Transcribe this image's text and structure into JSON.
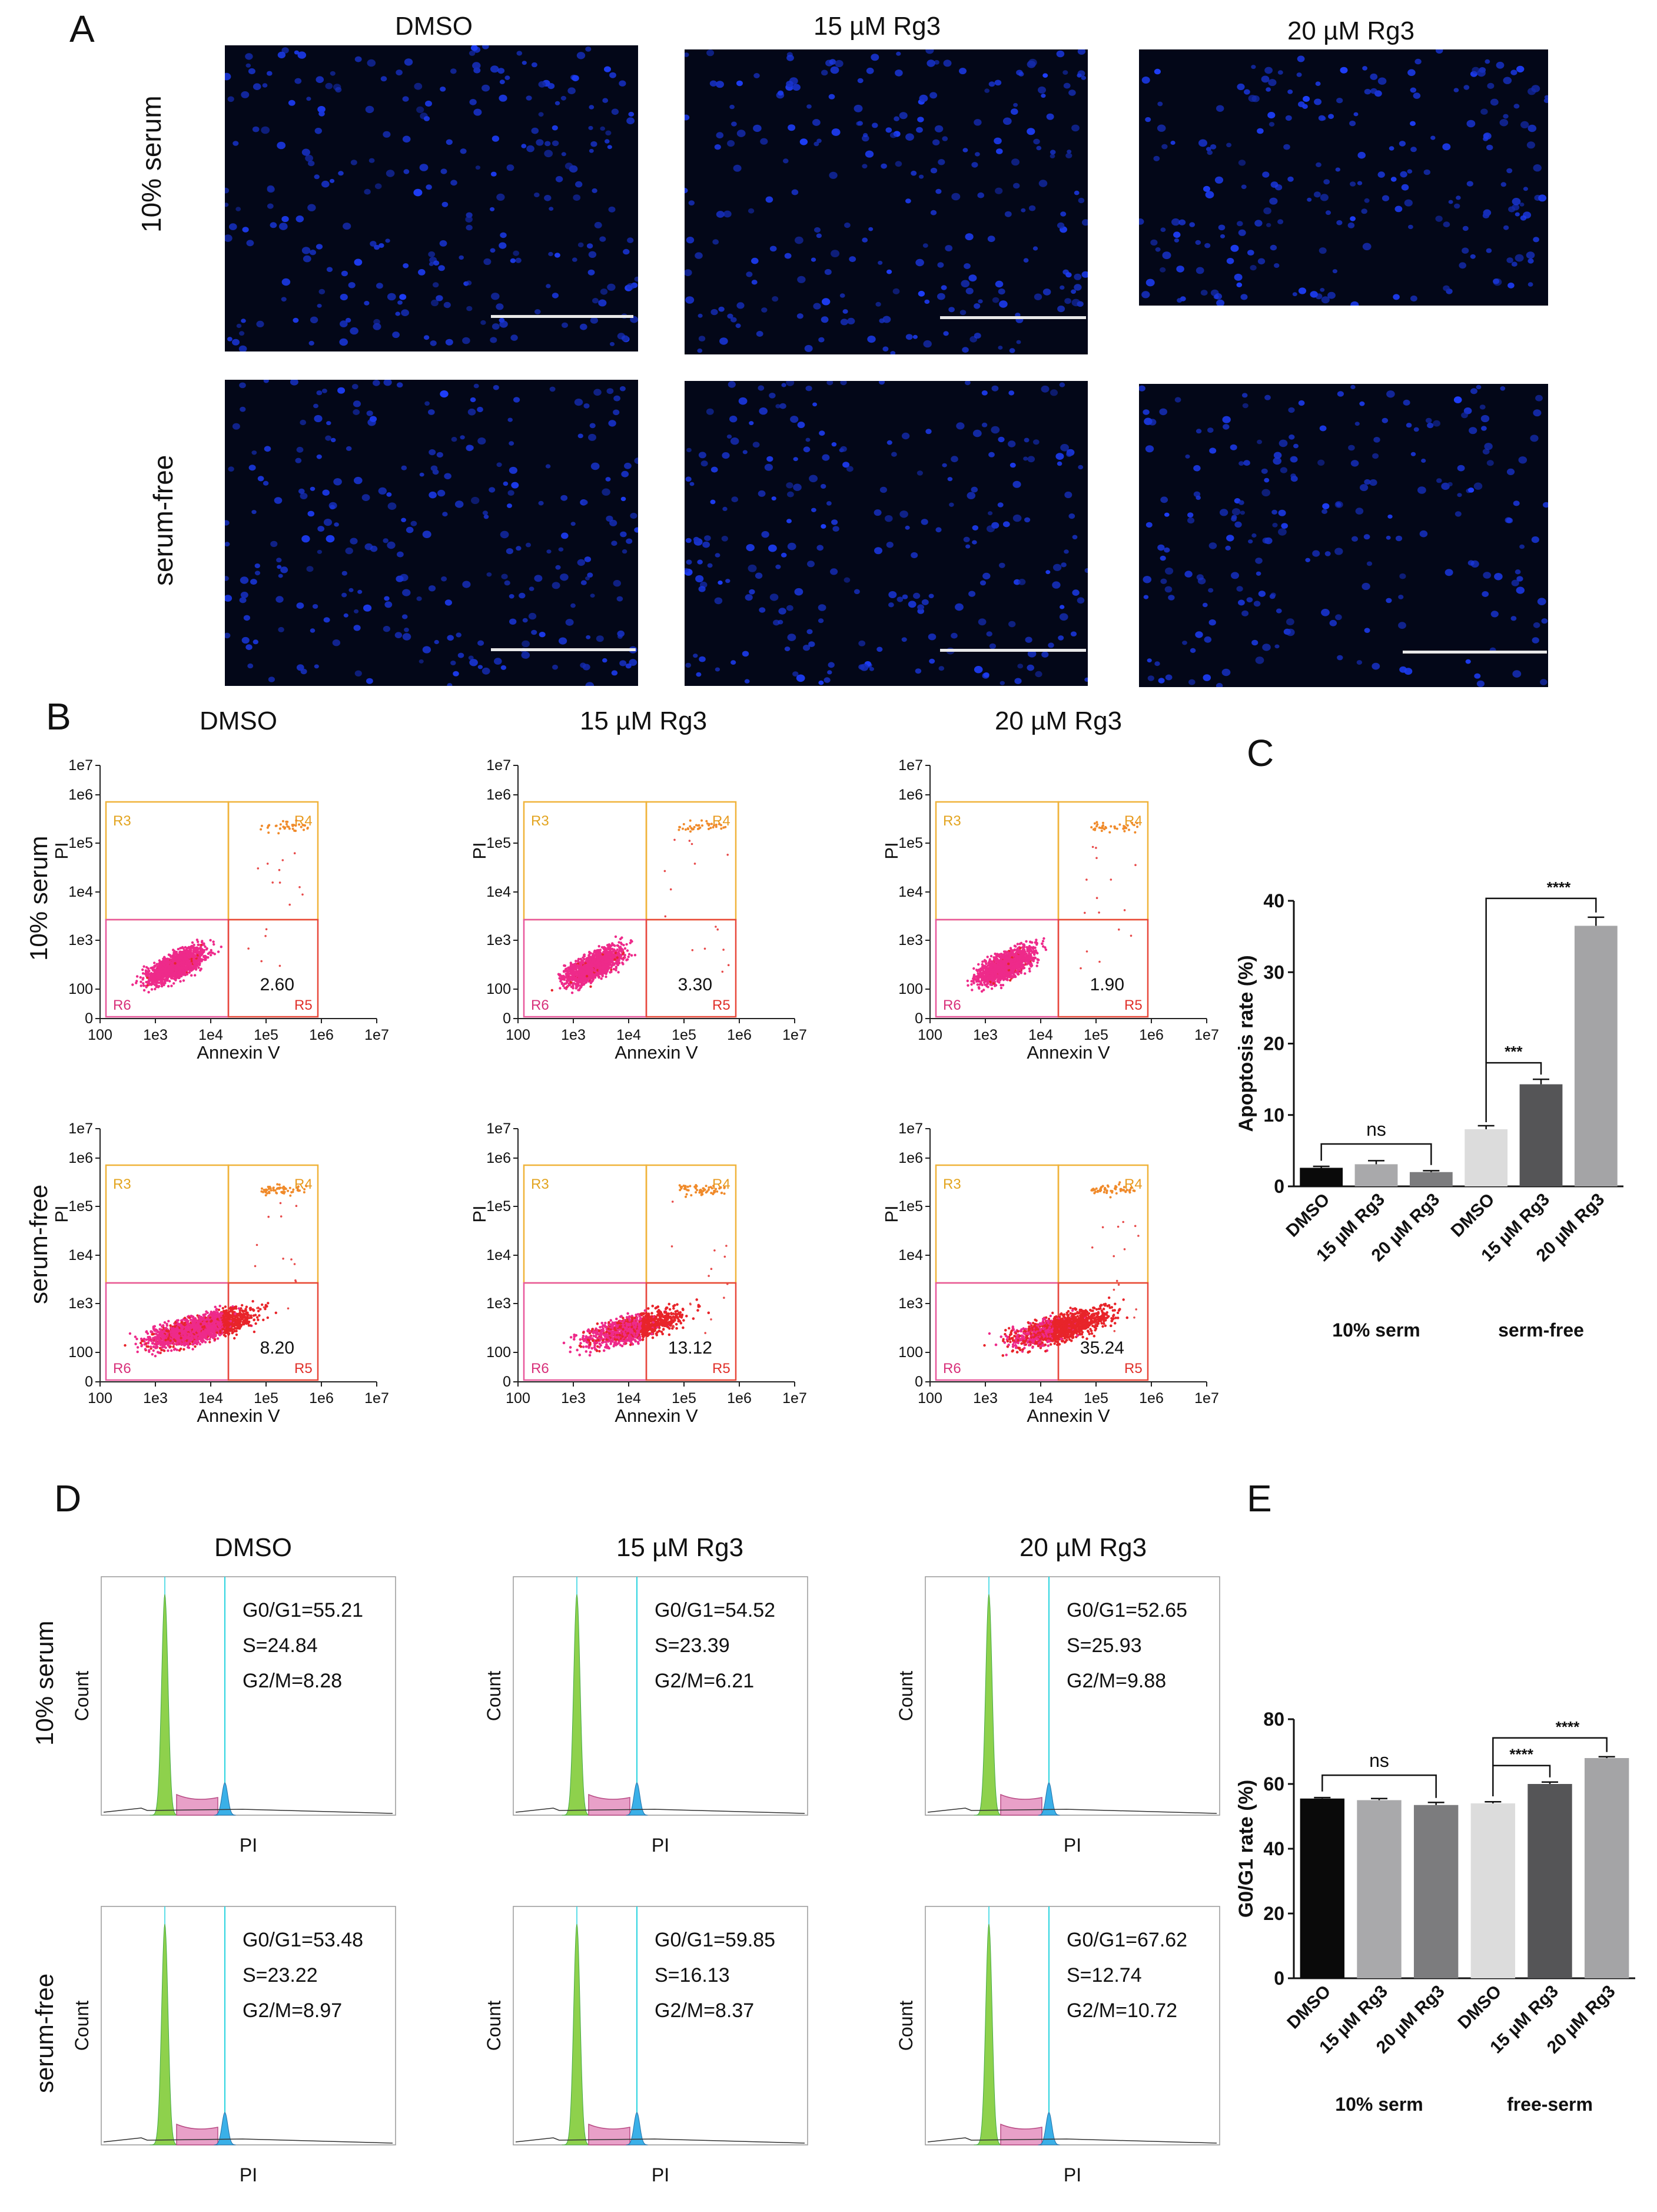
{
  "panels": {
    "A": "A",
    "B": "B",
    "C": "C",
    "D": "D",
    "E": "E"
  },
  "panelA": {
    "columns": [
      "DMSO",
      "15 µM Rg3",
      "20 µM Rg3"
    ],
    "rows": [
      "10% serum",
      "serum-free"
    ]
  },
  "panelB": {
    "columns": [
      "DMSO",
      "15 µM Rg3",
      "20  µM Rg3"
    ],
    "rows": [
      "10% serum",
      "serum-free"
    ],
    "x_ticks": [
      "100",
      "1e3",
      "1e4",
      "1e5",
      "1e6",
      "1e7"
    ],
    "y_ticks": [
      "0",
      "100",
      "1e3",
      "1e4",
      "1e5",
      "1e6",
      "1e7"
    ],
    "x_label": "Annexin V",
    "y_label": "PI",
    "gate_labels": [
      "R3",
      "R4",
      "R5",
      "R6"
    ],
    "values": [
      [
        "2.60",
        "3.30",
        "1.90"
      ],
      [
        "8.20",
        "13.12",
        "35.24"
      ]
    ],
    "red_fraction": [
      [
        0.02,
        0.03,
        0.02
      ],
      [
        0.18,
        0.3,
        0.55
      ]
    ]
  },
  "panelD": {
    "columns": [
      "DMSO",
      "15 µM Rg3",
      "20 µM Rg3"
    ],
    "rows": [
      "10% serum",
      "serum-free"
    ],
    "x_label": "PI",
    "y_label": "Count",
    "stats": [
      [
        [
          "G0/G1=55.21",
          "S=24.84",
          "G2/M=8.28"
        ],
        [
          "G0/G1=54.52",
          "S=23.39",
          "G2/M=6.21"
        ],
        [
          "G0/G1=52.65",
          "S=25.93",
          "G2/M=9.88"
        ]
      ],
      [
        [
          "G0/G1=53.48",
          "S=23.22",
          "G2/M=8.97"
        ],
        [
          "G0/G1=59.85",
          "S=16.13",
          "G2/M=8.37"
        ],
        [
          "G0/G1=67.62",
          "S=12.74",
          "G2/M=10.72"
        ]
      ]
    ]
  },
  "chart_data": [
    {
      "id": "C",
      "type": "bar",
      "categories": [
        "DMSO",
        "15 µM Rg3",
        "20 µM Rg3",
        "DMSO",
        "15 µM Rg3",
        "20 µM Rg3"
      ],
      "values": [
        2.6,
        3.1,
        2.0,
        8.0,
        14.3,
        36.5
      ],
      "errors": [
        0.2,
        0.5,
        0.2,
        0.5,
        0.7,
        1.2
      ],
      "colors": [
        "#0a0a0a",
        "#a9a9ab",
        "#7c7c7e",
        "#dcdcdc",
        "#555557",
        "#a4a4a6"
      ],
      "ylabel": "Apoptosis rate (%)",
      "ylim": [
        0,
        40
      ],
      "yticks": [
        "0",
        "10",
        "20",
        "30",
        "40"
      ],
      "groups": [
        "10% serm",
        "serm-free"
      ],
      "annotations": [
        "ns",
        "***",
        "****"
      ]
    },
    {
      "id": "E",
      "type": "bar",
      "categories": [
        "DMSO",
        "15 µM Rg3",
        "20 µM Rg3",
        "DMSO",
        "15 µM Rg3",
        "20 µM Rg3"
      ],
      "values": [
        55.5,
        55.0,
        53.5,
        54.0,
        60.0,
        68.0
      ],
      "errors": [
        0.3,
        0.5,
        0.8,
        0.5,
        0.6,
        0.4
      ],
      "colors": [
        "#0a0a0a",
        "#a9a9ab",
        "#7c7c7e",
        "#dcdcdc",
        "#555557",
        "#a4a4a6"
      ],
      "ylabel": "G0/G1 rate (%)",
      "ylim": [
        0,
        80
      ],
      "yticks": [
        "0",
        "20",
        "40",
        "60",
        "80"
      ],
      "groups": [
        "10% serm",
        "free-serm"
      ],
      "annotations": [
        "ns",
        "****",
        "****"
      ]
    }
  ]
}
